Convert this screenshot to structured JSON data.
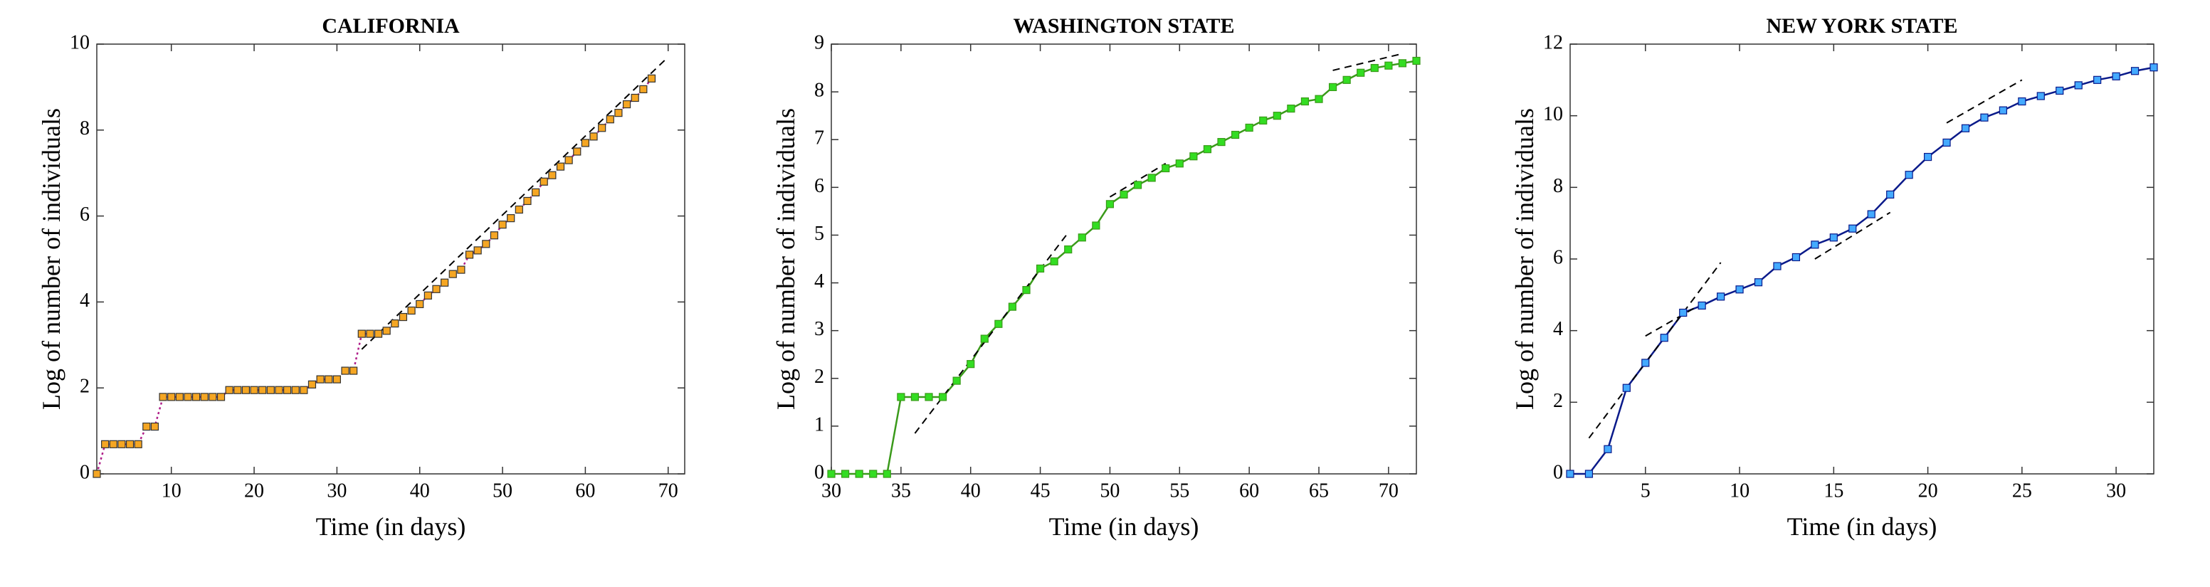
{
  "chart_data": [
    {
      "type": "line",
      "title": "CALIFORNIA",
      "xlabel": "Time (in days)",
      "ylabel": "Log of number of individuals",
      "x": [
        1,
        2,
        3,
        4,
        5,
        6,
        7,
        8,
        9,
        10,
        11,
        12,
        13,
        14,
        15,
        16,
        17,
        18,
        19,
        20,
        21,
        22,
        23,
        24,
        25,
        26,
        27,
        28,
        29,
        30,
        31,
        32,
        33,
        34,
        35,
        36,
        37,
        38,
        39,
        40,
        41,
        42,
        43,
        44,
        45,
        46,
        47,
        48,
        49,
        50,
        51,
        52,
        53,
        54,
        55,
        56,
        57,
        58,
        59,
        60,
        61,
        62,
        63,
        64,
        65,
        66,
        67,
        68
      ],
      "series": [
        {
          "color": "#b0208a",
          "line_style": "dotted",
          "marker_color": "#f5a623",
          "values": [
            0,
            0.69,
            0.69,
            0.69,
            0.69,
            0.69,
            1.1,
            1.1,
            1.79,
            1.79,
            1.79,
            1.79,
            1.79,
            1.79,
            1.79,
            1.79,
            1.95,
            1.95,
            1.95,
            1.95,
            1.95,
            1.95,
            1.95,
            1.95,
            1.95,
            1.95,
            2.08,
            2.2,
            2.2,
            2.2,
            2.4,
            2.4,
            3.26,
            3.26,
            3.26,
            3.33,
            3.5,
            3.65,
            3.8,
            3.95,
            4.15,
            4.3,
            4.45,
            4.65,
            4.75,
            5.1,
            5.2,
            5.35,
            5.55,
            5.8,
            5.95,
            6.15,
            6.35,
            6.55,
            6.8,
            6.95,
            7.15,
            7.3,
            7.5,
            7.7,
            7.85,
            8.05,
            8.25,
            8.4,
            8.6,
            8.75,
            8.95,
            9.2
          ]
        }
      ],
      "fit_lines": [
        {
          "x": [
            33,
            70
          ],
          "values": [
            2.9,
            9.7
          ]
        }
      ],
      "xlim": [
        1,
        72
      ],
      "xticks": [
        10,
        20,
        30,
        40,
        50,
        60,
        70
      ],
      "ylim": [
        0,
        10
      ],
      "yticks": [
        0,
        2,
        4,
        6,
        8,
        10
      ]
    },
    {
      "type": "line",
      "title": "WASHINGTON STATE",
      "xlabel": "Time (in days)",
      "ylabel": "Log of number of individuals",
      "x": [
        30,
        31,
        32,
        33,
        34,
        35,
        36,
        37,
        38,
        39,
        40,
        41,
        42,
        43,
        44,
        45,
        46,
        47,
        48,
        49,
        50,
        51,
        52,
        53,
        54,
        55,
        56,
        57,
        58,
        59,
        60,
        61,
        62,
        63,
        64,
        65,
        66,
        67,
        68,
        69,
        70,
        71,
        72
      ],
      "series": [
        {
          "color": "#3a9a1a",
          "line_style": "solid",
          "marker_color": "#33dd22",
          "values": [
            0,
            0,
            0,
            0,
            0,
            1.61,
            1.61,
            1.61,
            1.61,
            1.95,
            2.3,
            2.83,
            3.14,
            3.5,
            3.85,
            4.3,
            4.45,
            4.7,
            4.95,
            5.2,
            5.65,
            5.85,
            6.05,
            6.2,
            6.4,
            6.5,
            6.65,
            6.8,
            6.95,
            7.1,
            7.25,
            7.4,
            7.5,
            7.65,
            7.8,
            7.85,
            8.1,
            8.25,
            8.4,
            8.5,
            8.55,
            8.6,
            8.65
          ]
        }
      ],
      "fit_lines": [
        {
          "x": [
            36,
            47
          ],
          "values": [
            0.85,
            5.05
          ]
        },
        {
          "x": [
            50,
            54
          ],
          "values": [
            5.8,
            6.5
          ]
        },
        {
          "x": [
            66,
            71
          ],
          "values": [
            8.45,
            8.8
          ]
        }
      ],
      "xlim": [
        30,
        72
      ],
      "xticks": [
        30,
        35,
        40,
        45,
        50,
        55,
        60,
        65,
        70
      ],
      "ylim": [
        0,
        9
      ],
      "yticks": [
        0,
        1,
        2,
        3,
        4,
        5,
        6,
        7,
        8,
        9
      ]
    },
    {
      "type": "line",
      "title": "NEW YORK STATE",
      "xlabel": "Time (in days)",
      "ylabel": "Log of number of individuals",
      "x": [
        1,
        2,
        3,
        4,
        5,
        6,
        7,
        8,
        9,
        10,
        11,
        12,
        13,
        14,
        15,
        16,
        17,
        18,
        19,
        20,
        21,
        22,
        23,
        24,
        25,
        26,
        27,
        28,
        29,
        30,
        31,
        32
      ],
      "series": [
        {
          "color": "#0a1a8a",
          "line_style": "solid",
          "marker_color": "#44aaff",
          "values": [
            0,
            0,
            0.69,
            2.4,
            3.1,
            3.8,
            4.5,
            4.7,
            4.95,
            5.15,
            5.35,
            5.8,
            6.05,
            6.4,
            6.6,
            6.85,
            7.25,
            7.8,
            8.35,
            8.85,
            9.25,
            9.65,
            9.95,
            10.15,
            10.4,
            10.55,
            10.7,
            10.85,
            11.0,
            11.1,
            11.25,
            11.35
          ]
        }
      ],
      "fit_lines": [
        {
          "x": [
            2,
            9
          ],
          "values": [
            1.0,
            5.9
          ]
        },
        {
          "x": [
            5,
            8
          ],
          "values": [
            3.85,
            4.75
          ]
        },
        {
          "x": [
            14,
            18
          ],
          "values": [
            6.0,
            7.3
          ]
        },
        {
          "x": [
            21,
            25
          ],
          "values": [
            9.8,
            11.0
          ]
        }
      ],
      "xlim": [
        1,
        32
      ],
      "xticks": [
        5,
        10,
        15,
        20,
        25,
        30
      ],
      "ylim": [
        0,
        12
      ],
      "yticks": [
        0,
        2,
        4,
        6,
        8,
        10,
        12
      ]
    }
  ]
}
